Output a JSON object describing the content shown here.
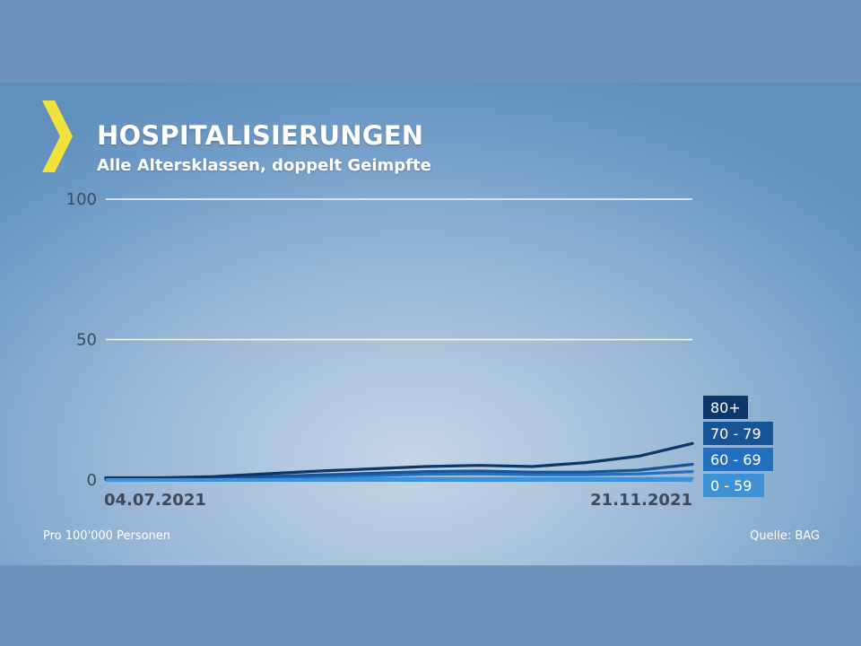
{
  "header": {
    "title": "HOSPITALISIERUNGEN",
    "subtitle": "Alle Altersklassen, doppelt Geimpfte"
  },
  "footer": {
    "left": "Pro 100'000 Personen",
    "right": "Quelle: BAG"
  },
  "colors": {
    "accent": "#f2e23a",
    "series_80_plus": "#0e3769",
    "series_70_79": "#17549a",
    "series_60_69": "#2470c0",
    "series_0_59": "#3d92d8"
  },
  "chart_data": {
    "type": "line",
    "ylim": [
      0,
      100
    ],
    "yticks": [
      "0",
      "50",
      "100"
    ],
    "x": [
      "04.07.2021",
      "",
      "",
      "",
      "",
      "",
      "",
      "",
      "",
      "",
      "",
      "21.11.2021"
    ],
    "xtick_labels": [
      "04.07.2021",
      "21.11.2021"
    ],
    "series": [
      {
        "name": "80+",
        "values": [
          0.8,
          0.8,
          1.2,
          2.2,
          3.2,
          4,
          4.8,
          5.2,
          4.8,
          6.2,
          8.5,
          13
        ],
        "color": "#0e3769"
      },
      {
        "name": "70 - 79",
        "values": [
          0.5,
          0.5,
          0.8,
          1.2,
          1.8,
          2.4,
          3,
          3.2,
          2.8,
          2.8,
          3.5,
          5.6
        ],
        "color": "#17549a"
      },
      {
        "name": "60 - 69",
        "values": [
          0.3,
          0.3,
          0.5,
          0.8,
          1.2,
          1.6,
          2,
          2.2,
          1.9,
          1.9,
          2.2,
          3
        ],
        "color": "#2470c0"
      },
      {
        "name": "0 - 59",
        "values": [
          0.1,
          0.1,
          0.2,
          0.3,
          0.4,
          0.5,
          0.6,
          0.6,
          0.5,
          0.5,
          0.5,
          0.6
        ],
        "color": "#3d92d8"
      }
    ],
    "grid": true,
    "legend": "right"
  }
}
